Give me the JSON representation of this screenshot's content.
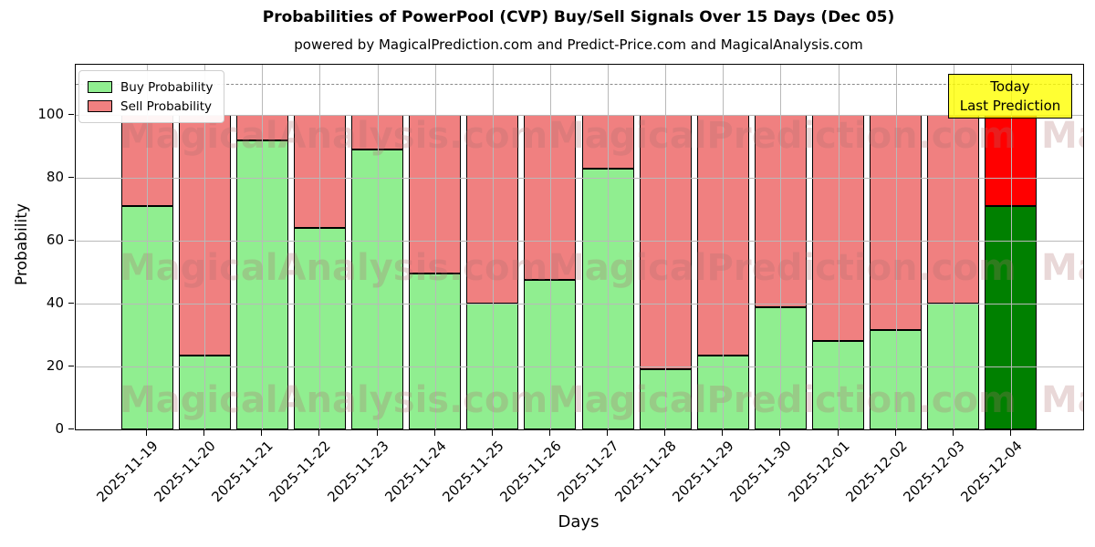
{
  "page": {
    "title": "Probabilities of PowerPool (CVP) Buy/Sell Signals Over 15 Days (Dec 05)",
    "subtitle": "powered by MagicalPrediction.com and Predict-Price.com and MagicalAnalysis.com"
  },
  "axes": {
    "xlabel": "Days",
    "ylabel": "Probability",
    "yticks": [
      0,
      20,
      40,
      60,
      80,
      100
    ],
    "ylim": [
      0,
      116
    ],
    "dashed_line_y": 110,
    "grid": true
  },
  "legend": {
    "position": "upper left",
    "items": [
      {
        "label": "Buy Probability",
        "color": "#90ee90"
      },
      {
        "label": "Sell Probability",
        "color": "#f08080"
      }
    ]
  },
  "annotation_box": {
    "line1": "Today",
    "line2": "Last Prediction",
    "bg_color": "#ffff00"
  },
  "watermarks": {
    "left_text": "MagicalAnalysis.com",
    "right_text": "MagicalPrediction.com"
  },
  "chart_data": {
    "type": "bar",
    "stacked": true,
    "title": "Probabilities of PowerPool (CVP) Buy/Sell Signals Over 15 Days (Dec 05)",
    "xlabel": "Days",
    "ylabel": "Probability",
    "ylim": [
      0,
      116
    ],
    "grid": true,
    "legend_position": "upper left",
    "today_index": 15,
    "categories": [
      "2025-11-19",
      "2025-11-20",
      "2025-11-21",
      "2025-11-22",
      "2025-11-23",
      "2025-11-24",
      "2025-11-25",
      "2025-11-26",
      "2025-11-27",
      "2025-11-28",
      "2025-11-29",
      "2025-11-30",
      "2025-12-01",
      "2025-12-02",
      "2025-12-03",
      "2025-12-04"
    ],
    "series": [
      {
        "name": "Buy Probability",
        "color": "#90ee90",
        "today_color": "#008000",
        "values": [
          71,
          23.5,
          92,
          64,
          89,
          49.5,
          40,
          47.5,
          83,
          19,
          23.5,
          39,
          28,
          31.5,
          40,
          71
        ]
      },
      {
        "name": "Sell Probability",
        "color": "#f08080",
        "today_color": "#ff0000",
        "values": [
          29,
          76.5,
          8,
          36,
          11,
          50.5,
          60,
          52.5,
          17,
          81,
          76.5,
          61,
          72,
          68.5,
          60,
          29
        ]
      }
    ]
  }
}
